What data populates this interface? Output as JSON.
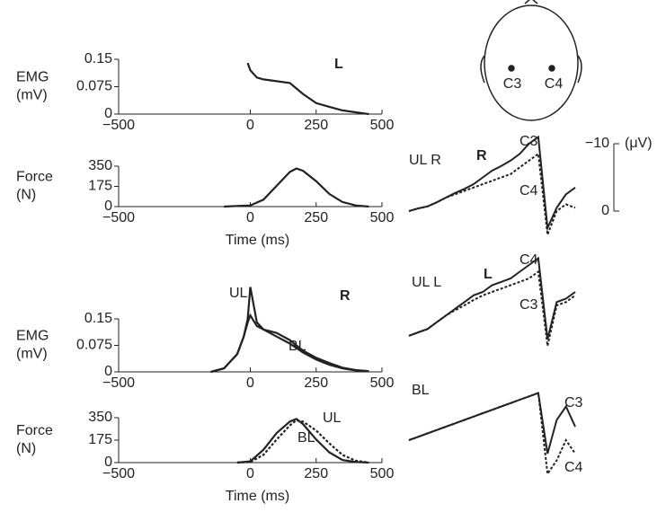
{
  "chart_data": [
    {
      "type": "line",
      "ylabel": [
        "EMG",
        "(mV)"
      ],
      "annotations": [
        "L"
      ],
      "xlim": [
        -500,
        500
      ],
      "xticks": [
        {
          "value": -500,
          "label": "−500"
        },
        0,
        250,
        500
      ],
      "ylim": [
        0,
        0.15
      ],
      "yticks": [
        0,
        0.075,
        0.15
      ],
      "series": [
        {
          "color": "#222",
          "x": [
            -10,
            0,
            25,
            50,
            100,
            150,
            175,
            200,
            250,
            300,
            350,
            400,
            450
          ],
          "values": [
            0.14,
            0.12,
            0.1,
            0.095,
            0.09,
            0.085,
            0.07,
            0.055,
            0.03,
            0.02,
            0.01,
            0.005,
            0
          ]
        }
      ]
    },
    {
      "type": "line",
      "ylabel": [
        "Force",
        "(N)"
      ],
      "xlabel": "Time (ms)",
      "xlim": [
        -500,
        500
      ],
      "xticks": [
        {
          "value": -500,
          "label": "−500"
        },
        0,
        250,
        500
      ],
      "ylim": [
        0,
        350
      ],
      "yticks": [
        0,
        175,
        350
      ],
      "series": [
        {
          "color": "#222",
          "x": [
            -100,
            0,
            50,
            100,
            150,
            175,
            200,
            250,
            300,
            350,
            400,
            450
          ],
          "values": [
            0,
            10,
            60,
            180,
            300,
            330,
            310,
            220,
            110,
            40,
            10,
            0
          ]
        }
      ]
    },
    {
      "type": "line",
      "ylabel": [
        "EMG",
        "(mV)"
      ],
      "annotations": [
        "R"
      ],
      "xlim": [
        -500,
        500
      ],
      "xticks": [
        {
          "value": -500,
          "label": "−500"
        },
        0,
        250,
        500
      ],
      "ylim": [
        0,
        0.15
      ],
      "yticks": [
        0,
        0.075,
        0.15
      ],
      "series": [
        {
          "name": "UL",
          "color": "#222",
          "x": [
            -150,
            -100,
            -50,
            -25,
            -10,
            0,
            25,
            50,
            100,
            150,
            200,
            250,
            300,
            350,
            400,
            450
          ],
          "values": [
            0,
            0.01,
            0.05,
            0.1,
            0.15,
            0.24,
            0.14,
            0.12,
            0.11,
            0.09,
            0.06,
            0.04,
            0.025,
            0.012,
            0.005,
            0.002
          ]
        },
        {
          "name": "BL",
          "color": "#222",
          "x": [
            -150,
            -100,
            -50,
            -25,
            -10,
            0,
            25,
            50,
            100,
            150,
            200,
            250,
            300,
            350,
            400,
            450
          ],
          "values": [
            0,
            0.01,
            0.05,
            0.1,
            0.14,
            0.16,
            0.13,
            0.12,
            0.1,
            0.08,
            0.055,
            0.035,
            0.02,
            0.01,
            0.004,
            0.002
          ]
        }
      ]
    },
    {
      "type": "line",
      "ylabel": [
        "Force",
        "(N)"
      ],
      "xlabel": "Time (ms)",
      "xlim": [
        -500,
        500
      ],
      "xticks": [
        {
          "value": -500,
          "label": "−500"
        },
        0,
        250,
        500
      ],
      "ylim": [
        0,
        350
      ],
      "yticks": [
        0,
        175,
        350
      ],
      "series": [
        {
          "name": "BL",
          "color": "#222",
          "x": [
            -50,
            0,
            50,
            100,
            150,
            175,
            200,
            250,
            300,
            350,
            400,
            450
          ],
          "values": [
            0,
            10,
            100,
            230,
            320,
            340,
            300,
            180,
            80,
            20,
            5,
            0
          ]
        },
        {
          "name": "UL",
          "color": "#222",
          "dash": true,
          "x": [
            -50,
            0,
            50,
            100,
            150,
            175,
            200,
            250,
            300,
            350,
            400,
            450
          ],
          "values": [
            0,
            5,
            60,
            180,
            290,
            330,
            320,
            250,
            150,
            60,
            15,
            0
          ]
        }
      ]
    },
    {
      "type": "trace",
      "annotations": [
        "UL R",
        "R"
      ],
      "ylabel": "(μV)",
      "ylim": [
        4,
        -12
      ],
      "yticks": [
        {
          "value": -10,
          "label": "−10"
        },
        0
      ],
      "series": [
        {
          "name": "C3",
          "color": "#222",
          "values": [
            0,
            -0.4,
            -0.7,
            -1.3,
            -2,
            -2.7,
            -3.3,
            -4,
            -5,
            -6,
            -6.7,
            -7.5,
            -8.5,
            -10,
            -11,
            2.5,
            -0.5,
            -2.5,
            -3.5
          ]
        },
        {
          "name": "C4",
          "color": "#222",
          "dash": true,
          "values": [
            0,
            -0.4,
            -0.7,
            -1.3,
            -2,
            -2.5,
            -3,
            -3.5,
            -4,
            -4.5,
            -5,
            -5.5,
            -6.5,
            -7.5,
            -8.5,
            3.5,
            0,
            -1,
            -0.5
          ]
        }
      ]
    },
    {
      "type": "trace",
      "annotations": [
        "UL L",
        "L"
      ],
      "ylim": [
        4,
        -12
      ],
      "series": [
        {
          "name": "C4",
          "color": "#222",
          "values": [
            0.5,
            0,
            -0.5,
            -1.5,
            -2.5,
            -3.5,
            -4.5,
            -5.5,
            -6,
            -7,
            -7.5,
            -8,
            -9,
            -10,
            -11,
            1,
            -4.5,
            -5,
            -6
          ]
        },
        {
          "name": "C3",
          "color": "#222",
          "dash": true,
          "values": [
            0.5,
            0,
            -0.5,
            -1.5,
            -2.5,
            -3.3,
            -4,
            -4.8,
            -5.5,
            -6,
            -6.5,
            -7,
            -7.5,
            -8,
            -9,
            2,
            -4,
            -4.5,
            -5.5
          ]
        }
      ]
    },
    {
      "type": "trace",
      "annotations": [
        "BL"
      ],
      "ylim": [
        4,
        -12
      ],
      "series": [
        {
          "name": "C3",
          "color": "#222",
          "values": [
            -2,
            -2.5,
            -3,
            -3.5,
            -4,
            -4.5,
            -5,
            -5.5,
            -6,
            -6.5,
            -7,
            -7.5,
            -8,
            -8.5,
            -9,
            0,
            -5,
            -7,
            -4
          ]
        },
        {
          "name": "C4",
          "color": "#222",
          "dash": true,
          "values": [
            -2,
            -2.5,
            -3,
            -3.5,
            -4,
            -4.5,
            -5,
            -5.5,
            -6,
            -6.5,
            -7,
            -7.5,
            -8,
            -8.5,
            -9,
            3,
            1,
            -2,
            0
          ]
        }
      ]
    }
  ],
  "head": {
    "electrodes": [
      "C3",
      "C4"
    ]
  }
}
